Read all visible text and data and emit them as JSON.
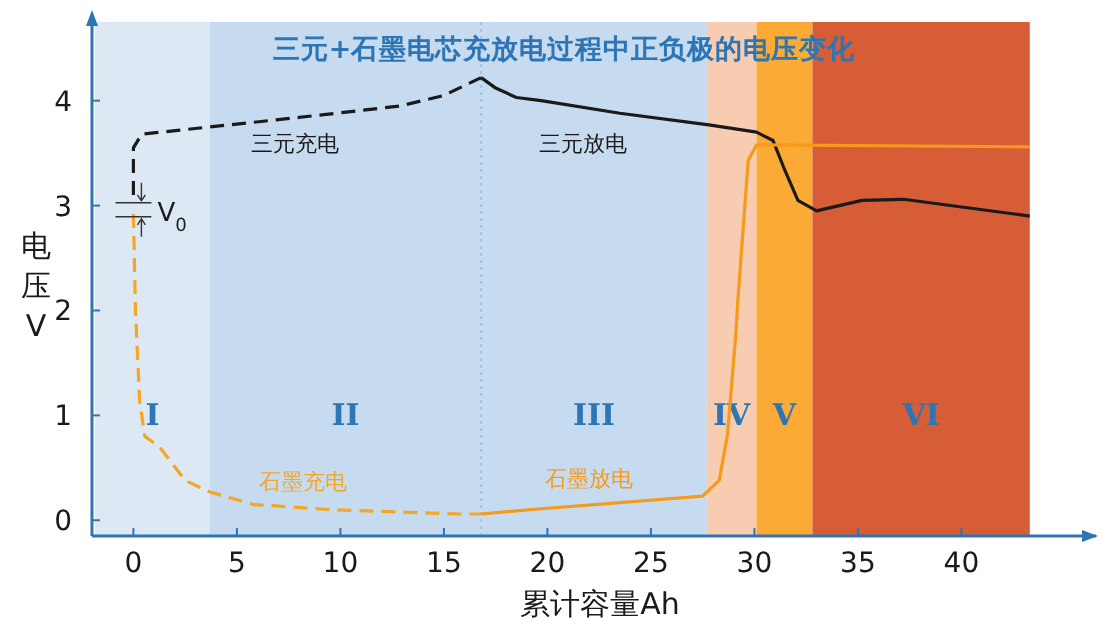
{
  "chart_data": {
    "type": "line",
    "title": "三元+石墨电芯充放电过程中正负极的电压变化",
    "xlabel": "累计容量Ah",
    "ylabel": "电压V",
    "xlim": [
      -2.0,
      46.5
    ],
    "ylim": [
      -0.15,
      4.75
    ],
    "xticks": [
      0,
      5,
      10,
      15,
      20,
      25,
      30,
      35,
      40
    ],
    "yticks": [
      0,
      1,
      2,
      3,
      4
    ],
    "grid": false,
    "marker": "none",
    "series": [
      {
        "name": "三元充电",
        "color": "#1a1a1a",
        "line_style": "dashed",
        "x": [
          0,
          0,
          0.4,
          3.7,
          8,
          12.9,
          15,
          16.8
        ],
        "values": [
          3.1,
          3.55,
          3.68,
          3.75,
          3.84,
          3.95,
          4.05,
          4.22
        ]
      },
      {
        "name": "三元放电",
        "color": "#1a1a1a",
        "line_style": "solid",
        "x": [
          16.8,
          17.5,
          18.5,
          19.7,
          23.5,
          27.8,
          30.1,
          30.9,
          31.4,
          32.1,
          33,
          35.2,
          37.2,
          43.3
        ],
        "values": [
          4.22,
          4.12,
          4.03,
          4.0,
          3.88,
          3.77,
          3.7,
          3.62,
          3.37,
          3.05,
          2.95,
          3.05,
          3.06,
          2.9
        ]
      },
      {
        "name": "石墨充电",
        "color": "#f5a623",
        "line_style": "dashed",
        "x": [
          0,
          0.1,
          0.3,
          0.55,
          1.26,
          2.5,
          3.7,
          5.8,
          9.7,
          15.8,
          16.8
        ],
        "values": [
          2.92,
          2.0,
          1.14,
          0.8,
          0.7,
          0.38,
          0.27,
          0.15,
          0.1,
          0.06,
          0.06
        ]
      },
      {
        "name": "石墨放电",
        "color": "#f59a1b",
        "line_style": "solid",
        "x": [
          16.8,
          19.7,
          27.5,
          28.3,
          28.7,
          29.1,
          29.2,
          29.7,
          30.1,
          43.3
        ],
        "values": [
          0.06,
          0.11,
          0.23,
          0.38,
          0.82,
          1.77,
          2.1,
          3.43,
          3.58,
          3.56
        ]
      }
    ],
    "bands": [
      {
        "axis": "x",
        "from": -1.85,
        "to": 3.7,
        "label": "I",
        "color": "#dde8f5"
      },
      {
        "axis": "x",
        "from": 3.7,
        "to": 16.8,
        "label": "II",
        "color": "#c6dbf0"
      },
      {
        "axis": "x",
        "from": 16.8,
        "to": 27.7,
        "label": "III",
        "color": "#c6dbf0"
      },
      {
        "axis": "x",
        "from": 27.7,
        "to": 30.1,
        "label": "IV",
        "color": "#f7ccb0"
      },
      {
        "axis": "x",
        "from": 30.1,
        "to": 32.8,
        "label": "V",
        "color": "#fbab35"
      },
      {
        "axis": "x",
        "from": 32.8,
        "to": 43.3,
        "label": "VI",
        "color": "#d65d35"
      }
    ],
    "ref_lines": [
      {
        "axis": "x",
        "value": 16.8,
        "color": "#9dc3e6",
        "line_style": "dotted"
      }
    ],
    "annotations": [
      {
        "text": "V$_{0}$",
        "x": 0,
        "y": 2.95
      }
    ]
  }
}
